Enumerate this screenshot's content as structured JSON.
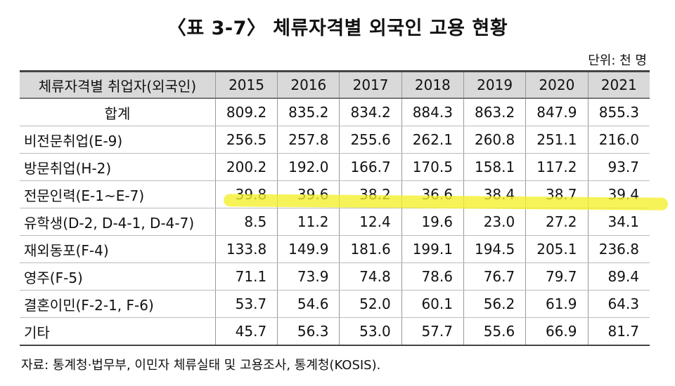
{
  "title": "〈표 3-7〉 체류자격별 외국인 고용 현황",
  "unit": "단위: 천 명",
  "table": {
    "header": [
      "체류자격별 취업자(외국인)",
      "2015",
      "2016",
      "2017",
      "2018",
      "2019",
      "2020",
      "2021"
    ],
    "rows": [
      {
        "label": "합계",
        "values": [
          "809.2",
          "835.2",
          "834.2",
          "884.3",
          "863.2",
          "847.9",
          "855.3"
        ]
      },
      {
        "label": "비전문취업(E-9)",
        "values": [
          "256.5",
          "257.8",
          "255.6",
          "262.1",
          "260.8",
          "251.1",
          "216.0"
        ]
      },
      {
        "label": "방문취업(H-2)",
        "values": [
          "200.2",
          "192.0",
          "166.7",
          "170.5",
          "158.1",
          "117.2",
          "93.7"
        ]
      },
      {
        "label": "전문인력(E-1~E-7)",
        "values": [
          "39.8",
          "39.6",
          "38.2",
          "36.6",
          "38.4",
          "38.7",
          "39.4"
        ]
      },
      {
        "label": "유학생(D-2, D-4-1, D-4-7)",
        "values": [
          "8.5",
          "11.2",
          "12.4",
          "19.6",
          "23.0",
          "27.2",
          "34.1"
        ]
      },
      {
        "label": "재외동포(F-4)",
        "values": [
          "133.8",
          "149.9",
          "181.6",
          "199.1",
          "194.5",
          "205.1",
          "236.8"
        ]
      },
      {
        "label": "영주(F-5)",
        "values": [
          "71.1",
          "73.9",
          "74.8",
          "78.6",
          "76.7",
          "79.7",
          "89.4"
        ]
      },
      {
        "label": "결혼이민(F-2-1, F-6)",
        "values": [
          "53.7",
          "54.6",
          "52.0",
          "60.1",
          "56.2",
          "61.9",
          "64.3"
        ]
      },
      {
        "label": "기타",
        "values": [
          "45.7",
          "56.3",
          "53.0",
          "57.7",
          "55.6",
          "66.9",
          "81.7"
        ]
      }
    ]
  },
  "source": "자료: 통계청·법무부, 이민자 체류실태 및 고용조사, 통계청(KOSIS).",
  "highlight_color": "#f3f02a"
}
